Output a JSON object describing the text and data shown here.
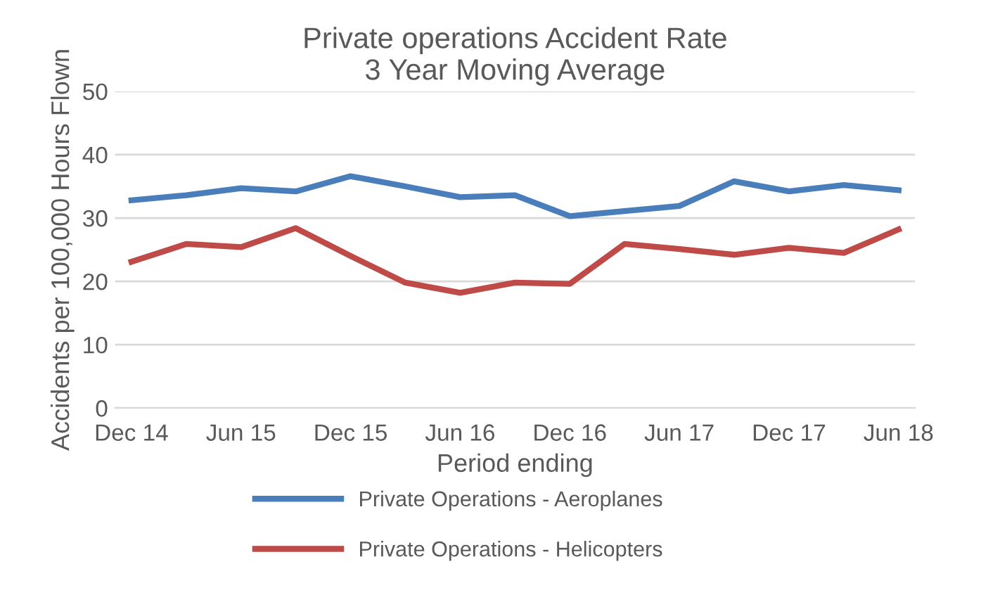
{
  "chart_data": {
    "type": "line",
    "title": "Private operations Accident Rate\n3 Year Moving Average",
    "xlabel": "Period ending",
    "ylabel": "Accidents per 100,000 Hours Flown",
    "categories": [
      "Dec 14",
      null,
      "Jun 15",
      null,
      "Dec 15",
      null,
      "Jun 16",
      null,
      "Dec 16",
      null,
      "Jun 17",
      null,
      "Dec 17",
      null,
      "Jun 18"
    ],
    "series": [
      {
        "name": "Private Operations - Aeroplanes",
        "color": "#4a7ebb",
        "values": [
          32.8,
          33.6,
          34.7,
          34.2,
          36.6,
          35.0,
          33.3,
          33.6,
          30.3,
          31.1,
          31.9,
          35.8,
          34.2,
          35.2,
          34.4
        ]
      },
      {
        "name": "Private Operations - Helicopters",
        "color": "#be4b48",
        "values": [
          23.1,
          25.9,
          25.4,
          28.4,
          24.0,
          19.8,
          18.2,
          19.8,
          19.6,
          25.9,
          25.1,
          24.2,
          25.3,
          24.5,
          28.2
        ]
      }
    ],
    "ylim": [
      0,
      50
    ],
    "yticks": [
      0,
      10,
      20,
      30,
      40,
      50
    ],
    "grid": "y",
    "legend": "bottom",
    "marker": "none",
    "line_style": "solid"
  }
}
